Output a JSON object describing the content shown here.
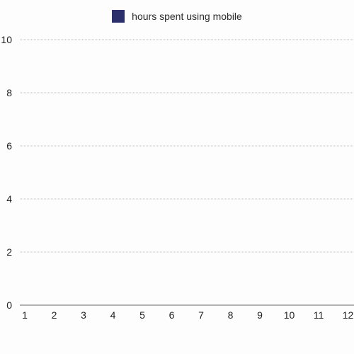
{
  "chart_data": {
    "type": "bar",
    "categories": [
      "1",
      "2",
      "3",
      "4",
      "5",
      "6",
      "7",
      "8",
      "9",
      "10",
      "11",
      "12"
    ],
    "series": [
      {
        "name": "hours spent using mobile",
        "values": [
          0,
          0,
          0,
          0,
          0,
          0,
          0,
          0,
          0,
          0,
          0,
          0
        ],
        "color": "#2b2f6b"
      }
    ],
    "ylim": [
      0,
      10
    ],
    "yticks": [
      "0",
      "2",
      "4",
      "6",
      "8",
      "10"
    ],
    "grid": true,
    "legend_position": "top-center"
  },
  "colors": {
    "background": "#fdfdfd",
    "grid": "#bdbdbd",
    "axis": "#9a9a9a",
    "series": "#2b2f6b"
  }
}
